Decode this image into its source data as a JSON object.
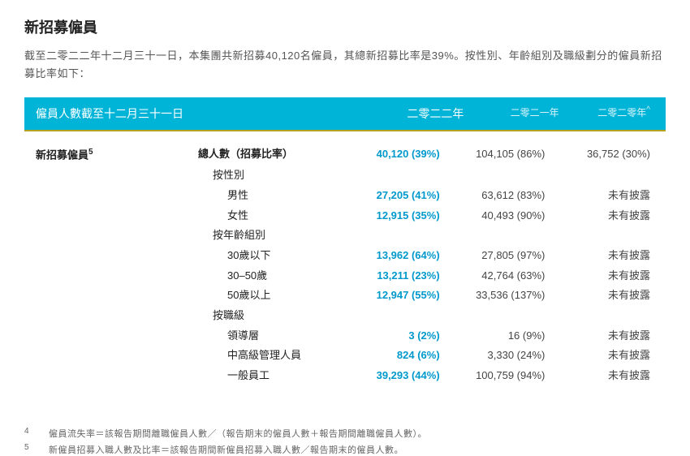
{
  "title": "新招募僱員",
  "intro": "截至二零二二年十二月三十一日，本集團共新招募40,120名僱員，其總新招募比率是39%。按性別、年齡組別及職級劃分的僱員新招募比率如下：",
  "header": {
    "left": "僱員人數截至十二月三十一日",
    "y1": "二零二二年",
    "y2": "二零二一年",
    "y3": "二零二零年"
  },
  "mainRow": {
    "label": "新招募僱員",
    "labelSup": "5",
    "sub": "總人數（招募比率）",
    "y1": "40,120 (39%)",
    "y2": "104,105 (86%)",
    "y3": "36,752 (30%)"
  },
  "groups": [
    {
      "label": "按性別",
      "rows": [
        {
          "sub": "男性",
          "y1": "27,205 (41%)",
          "y2": "63,612 (83%)",
          "y3": "未有披露"
        },
        {
          "sub": "女性",
          "y1": "12,915 (35%)",
          "y2": "40,493 (90%)",
          "y3": "未有披露"
        }
      ]
    },
    {
      "label": "按年齡組別",
      "rows": [
        {
          "sub": "30歲以下",
          "y1": "13,962 (64%)",
          "y2": "27,805 (97%)",
          "y3": "未有披露"
        },
        {
          "sub": "30–50歲",
          "y1": "13,211 (23%)",
          "y2": "42,764 (63%)",
          "y3": "未有披露"
        },
        {
          "sub": "50歲以上",
          "y1": "12,947 (55%)",
          "y2": "33,536 (137%)",
          "y3": "未有披露"
        }
      ]
    },
    {
      "label": "按職級",
      "rows": [
        {
          "sub": "領導層",
          "y1": "3 (2%)",
          "y2": "16 (9%)",
          "y3": "未有披露"
        },
        {
          "sub": "中高級管理人員",
          "y1": "824 (6%)",
          "y2": "3,330 (24%)",
          "y3": "未有披露"
        },
        {
          "sub": "一般員工",
          "y1": "39,293 (44%)",
          "y2": "100,759 (94%)",
          "y3": "未有披露"
        }
      ]
    }
  ],
  "footnotes": [
    {
      "num": "4",
      "text": "僱員流失率＝該報告期間離職僱員人數／（報告期末的僱員人數＋報告期間離職僱員人數）。"
    },
    {
      "num": "5",
      "text": "新僱員招募入職人數及比率＝該報告期間新僱員招募入職人數／報告期末的僱員人數。"
    }
  ]
}
